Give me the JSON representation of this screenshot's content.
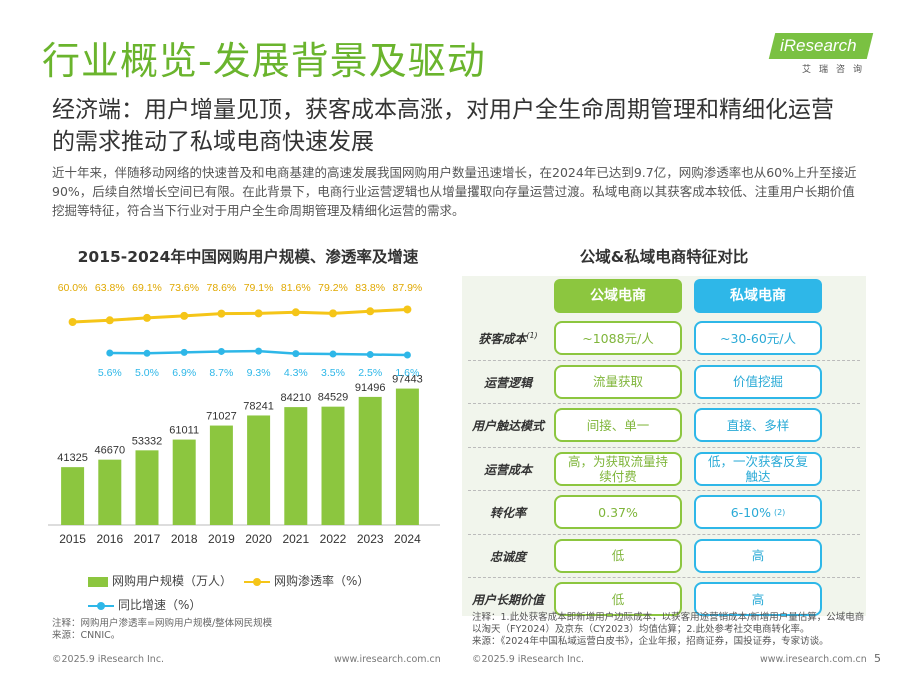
{
  "header": {
    "title": "行业概览-发展背景及驱动",
    "logo_text": "iResearch",
    "logo_sub": "艾瑞咨询"
  },
  "subtitle": "经济端：用户增量见顶，获客成本高涨，对用户全生命周期管理和精细化运营的需求推动了私域电商快速发展",
  "intro": "近十年来，伴随移动网络的快速普及和电商基建的高速发展我国网购用户数量迅速增长，在2024年已达到9.7亿，网购渗透率也从60%上升至接近90%，后续自然增长空间已有限。在此背景下，电商行业运营逻辑也从增量攫取向存量运营过渡。私域电商以其获客成本较低、注重用户长期价值挖掘等特征，符合当下行业对于用户全生命周期管理及精细化运营的需求。",
  "chart_data": {
    "type": "bar",
    "title": "2015-2024年中国网购用户规模、渗透率及增速",
    "categories": [
      "2015",
      "2016",
      "2017",
      "2018",
      "2019",
      "2020",
      "2021",
      "2022",
      "2023",
      "2024"
    ],
    "series": [
      {
        "name": "网购用户规模（万人）",
        "type": "bar",
        "values": [
          41325,
          46670,
          53332,
          61011,
          71027,
          78241,
          84210,
          84529,
          91496,
          97443
        ],
        "labels": [
          "41325",
          "46670",
          "53332",
          "61011",
          "71027",
          "78241",
          "84210",
          "84529",
          "91496",
          "97443"
        ],
        "color": "#8cc63f"
      },
      {
        "name": "网购渗透率（%）",
        "type": "line",
        "values": [
          60.0,
          63.8,
          69.1,
          73.6,
          78.6,
          79.1,
          81.6,
          79.2,
          83.8,
          87.9
        ],
        "labels": [
          "60.0%",
          "63.8%",
          "69.1%",
          "73.6%",
          "78.6%",
          "79.1%",
          "81.6%",
          "79.2%",
          "83.8%",
          "87.9%"
        ],
        "color": "#f5c518"
      },
      {
        "name": "同比增速（%）",
        "type": "line",
        "values": [
          null,
          5.6,
          5.0,
          6.9,
          8.7,
          9.3,
          4.3,
          3.5,
          2.5,
          1.6
        ],
        "labels": [
          "",
          "5.6%",
          "5.0%",
          "6.9%",
          "8.7%",
          "9.3%",
          "4.3%",
          "3.5%",
          "2.5%",
          "1.6%"
        ],
        "color": "#2eb7e8"
      }
    ]
  },
  "chart_notes": [
    "注释：网购用户渗透率=网购用户规模/整体网民规模",
    "来源：CNNIC。"
  ],
  "comparison": {
    "title": "公域&私域电商特征对比",
    "col_public": "公域电商",
    "col_private": "私域电商",
    "rows": [
      {
        "label": "获客成本",
        "sup": "(1)",
        "public": "~1088元/人",
        "private": "~30-60元/人",
        "private_sup": ""
      },
      {
        "label": "运营逻辑",
        "sup": "",
        "public": "流量获取",
        "private": "价值挖掘",
        "private_sup": ""
      },
      {
        "label": "用户触达模式",
        "sup": "",
        "public": "间接、单一",
        "private": "直接、多样",
        "private_sup": ""
      },
      {
        "label": "运营成本",
        "sup": "",
        "public": "高，为获取流量持续付费",
        "private": "低，一次获客反复触达",
        "private_sup": ""
      },
      {
        "label": "转化率",
        "sup": "",
        "public": "0.37%",
        "private": "6-10%",
        "private_sup": "(2)"
      },
      {
        "label": "忠诚度",
        "sup": "",
        "public": "低",
        "private": "高",
        "private_sup": ""
      },
      {
        "label": "用户长期价值",
        "sup": "",
        "public": "低",
        "private": "高",
        "private_sup": ""
      }
    ],
    "notes": [
      "注释：1.此处获客成本即新增用户边际成本，以获客用途营销成本/新增用户量估算，公域电商以淘天（FY2024）及京东（CY2023）均值估算；2.此处参考社交电商转化率。",
      "来源：《2024年中国私域运营白皮书》，企业年报，招商证券，国投证券，专家访谈。"
    ]
  },
  "footer": {
    "left_copy": "©2025.9 iResearch Inc.",
    "left_url": "www.iresearch.com.cn",
    "right_copy": "©2025.9 iResearch Inc.",
    "right_url": "www.iresearch.com.cn",
    "page": "5"
  },
  "colors": {
    "accent_green": "#6ab42d",
    "bar": "#8cc63f",
    "penetration": "#f5c518",
    "growth": "#2eb7e8"
  }
}
